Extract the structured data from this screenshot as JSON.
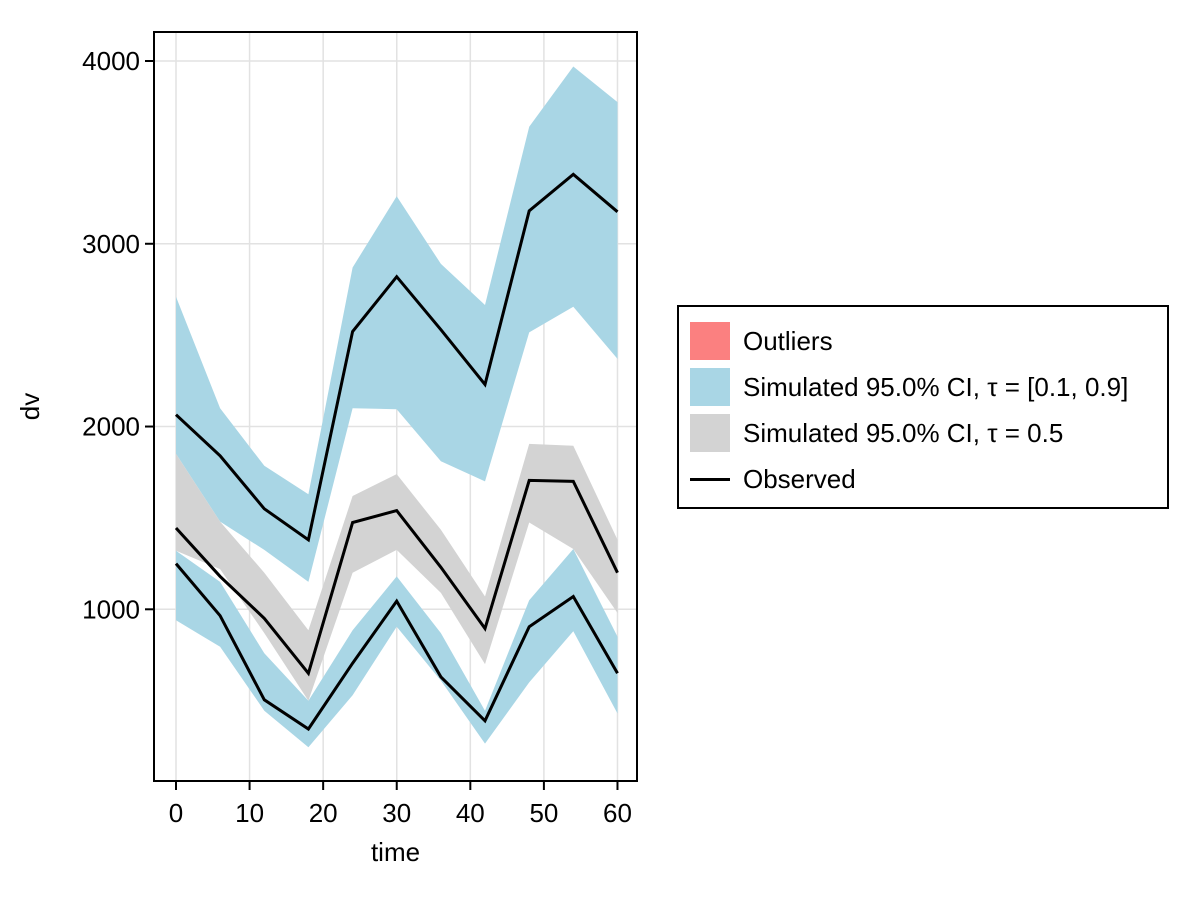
{
  "chart_data": {
    "type": "line",
    "title": "",
    "xlabel": "time",
    "ylabel": "dv",
    "grid": true,
    "legend_position": "right-outside",
    "x_range": [
      -3,
      62.7
    ],
    "y_range": [
      60,
      4160
    ],
    "x_tick_values": [
      0,
      10,
      20,
      30,
      40,
      50,
      60
    ],
    "x_tick_labels": [
      "0",
      "10",
      "20",
      "30",
      "40",
      "50",
      "60"
    ],
    "y_tick_values": [
      1000,
      2000,
      3000,
      4000
    ],
    "y_tick_labels": [
      "1000",
      "2000",
      "3000",
      "4000"
    ],
    "x": [
      0,
      6,
      12,
      18,
      24,
      30,
      36,
      42,
      48,
      54,
      60
    ],
    "bands": [
      {
        "name": "Simulated 95.0% CI, τ = [0.1, 0.9] — upper quantile band",
        "color": "#A9D6E5",
        "hi": [
          2710,
          2100,
          1785,
          1630,
          2870,
          3260,
          2890,
          2665,
          3640,
          3970,
          3775
        ],
        "lo": [
          1850,
          1480,
          1325,
          1150,
          2100,
          2095,
          1810,
          1700,
          2515,
          2655,
          2370
        ]
      },
      {
        "name": "Simulated 95.0% CI, τ = 0.5 — median band",
        "color": "#D3D3D3",
        "hi": [
          1850,
          1480,
          1200,
          885,
          1620,
          1740,
          1435,
          1070,
          1905,
          1895,
          1380
        ],
        "lo": [
          1320,
          1220,
          870,
          500,
          1200,
          1325,
          1090,
          700,
          1475,
          1330,
          980
        ]
      },
      {
        "name": "Simulated 95.0% CI, τ = [0.1, 0.9] — lower quantile band",
        "color": "#A9D6E5",
        "hi": [
          1320,
          1150,
          760,
          500,
          885,
          1180,
          870,
          445,
          1050,
          1330,
          850
        ],
        "lo": [
          940,
          795,
          445,
          245,
          530,
          905,
          610,
          265,
          600,
          880,
          430
        ]
      }
    ],
    "series": [
      {
        "name": "Observed — upper quantile line",
        "legend_label": "Observed",
        "color": "#000000",
        "values": [
          2065,
          1840,
          1550,
          1380,
          2520,
          2820,
          2530,
          2230,
          3180,
          3380,
          3175
        ]
      },
      {
        "name": "Observed — median line",
        "legend_label": "Observed",
        "color": "#000000",
        "values": [
          1445,
          1180,
          950,
          650,
          1475,
          1540,
          1230,
          895,
          1705,
          1700,
          1200
        ]
      },
      {
        "name": "Observed — lower quantile line",
        "legend_label": "Observed",
        "color": "#000000",
        "values": [
          1250,
          965,
          505,
          345,
          705,
          1045,
          630,
          390,
          905,
          1070,
          650
        ]
      }
    ],
    "legend": {
      "items": [
        {
          "label": "Outliers",
          "swatch": "square",
          "color": "#FB8080"
        },
        {
          "label": "Simulated 95.0% CI, τ = [0.1, 0.9]",
          "swatch": "square",
          "color": "#A9D6E5"
        },
        {
          "label": "Simulated 95.0% CI, τ = 0.5",
          "swatch": "square",
          "color": "#D3D3D3"
        },
        {
          "label": "Observed",
          "swatch": "line",
          "color": "#000000"
        }
      ]
    },
    "colors": {
      "frame": "#000000",
      "gridline": "#E2E2E2",
      "background": "#FFFFFF"
    }
  }
}
